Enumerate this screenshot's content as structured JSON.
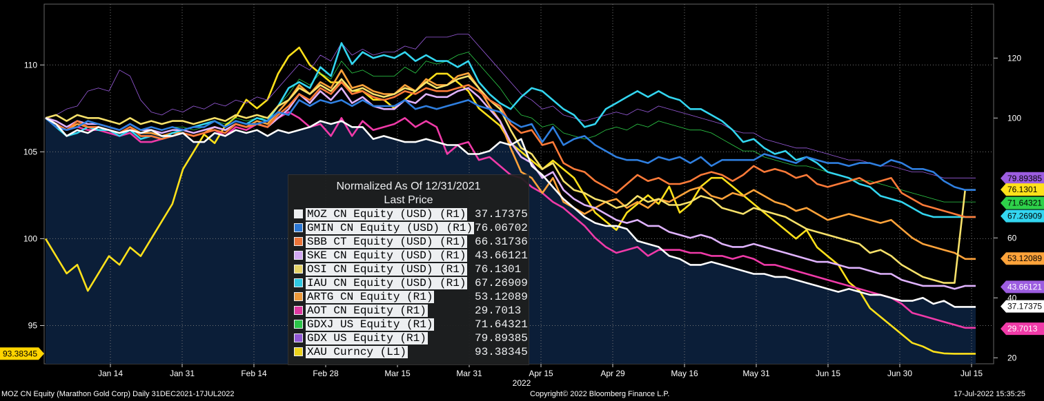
{
  "chart_data": {
    "type": "line",
    "title": "Normalized As Of 12/31/2021",
    "subtitle": "Last Price",
    "x_tick_labels": [
      "Jan 14",
      "Jan 31",
      "Feb 14",
      "Feb 28",
      "Mar 15",
      "Mar 31",
      "Apr 15",
      "Apr 29",
      "May 16",
      "May 31",
      "Jun 15",
      "Jun 30",
      "Jul 15"
    ],
    "x_year_label": "2022",
    "left_axis": {
      "ticks": [
        95,
        100,
        105,
        110
      ],
      "ylim": [
        92.8,
        113.5
      ],
      "marker": "93.38345",
      "marker_color": "#ffd400"
    },
    "right_axis": {
      "ticks": [
        20,
        40,
        60,
        100,
        120
      ],
      "ylim": [
        18,
        138
      ]
    },
    "series": [
      {
        "name": "MOZ CN Equity (USD) (R1)",
        "color": "#ffffff",
        "last": "37.17375",
        "values": [
          100,
          98,
          94,
          96,
          95,
          97,
          96,
          95,
          96,
          95,
          96,
          94,
          94,
          95,
          92,
          92,
          95,
          94,
          96,
          95,
          96,
          94,
          96,
          95,
          96,
          97,
          99,
          98,
          99,
          97,
          97,
          93,
          94,
          93,
          92,
          92,
          93,
          92,
          91,
          91,
          88,
          88,
          89,
          92,
          91,
          93,
          84,
          81,
          77,
          73,
          70,
          67,
          65,
          64,
          64,
          63,
          59,
          58,
          57,
          54,
          53,
          51,
          51,
          52,
          51,
          50,
          49,
          48,
          48,
          47,
          47,
          46,
          45,
          44,
          43,
          42,
          43,
          42,
          41,
          41,
          40,
          39,
          39,
          40,
          38,
          39,
          37,
          37,
          37
        ]
      },
      {
        "name": "GMIN CN Equity (USD) (R1)",
        "color": "#2f7fe0",
        "last": "76.06702",
        "values": [
          100,
          97,
          96,
          97,
          99,
          98,
          97,
          96,
          98,
          96,
          97,
          96,
          97,
          96,
          97,
          97,
          99,
          97,
          99,
          98,
          98,
          99,
          102,
          101,
          106,
          104,
          106,
          105,
          106,
          104,
          106,
          104,
          104,
          104,
          106,
          103,
          104,
          103,
          104,
          105,
          106,
          104,
          103,
          102,
          99,
          97,
          98,
          92,
          97,
          91,
          93,
          94,
          91,
          89,
          87,
          86,
          86,
          85,
          87,
          86,
          87,
          85,
          87,
          84,
          86,
          86,
          86,
          86,
          88,
          87,
          86,
          85,
          87,
          86,
          85,
          85,
          84,
          85,
          85,
          84,
          86,
          85,
          83,
          83,
          82,
          79,
          77,
          76,
          76
        ]
      },
      {
        "name": "SBB CT Equity (USD) (R1)",
        "color": "#ff7b39",
        "last": "66.31736",
        "values": [
          100,
          98,
          96,
          99,
          97,
          97,
          96,
          95,
          97,
          94,
          94,
          93,
          94,
          95,
          94,
          95,
          96,
          95,
          98,
          97,
          98,
          97,
          101,
          104,
          108,
          106,
          110,
          108,
          112,
          108,
          109,
          107,
          106,
          107,
          109,
          108,
          110,
          109,
          109,
          110,
          111,
          109,
          106,
          104,
          98,
          95,
          96,
          91,
          92,
          85,
          83,
          82,
          79,
          77,
          75,
          78,
          81,
          79,
          80,
          78,
          78,
          79,
          81,
          82,
          81,
          79,
          81,
          84,
          82,
          83,
          82,
          80,
          81,
          78,
          77,
          78,
          79,
          80,
          78,
          79,
          80,
          75,
          73,
          71,
          70,
          69,
          68,
          67,
          67
        ]
      },
      {
        "name": "SKE CN Equity (USD) (R1)",
        "color": "#e0b3ff",
        "last": "43.66121",
        "values": [
          100,
          99,
          97,
          99,
          98,
          98,
          97,
          96,
          98,
          96,
          96,
          95,
          96,
          96,
          95,
          96,
          97,
          96,
          98,
          97,
          98,
          97,
          100,
          103,
          108,
          105,
          109,
          106,
          110,
          105,
          107,
          104,
          103,
          103,
          106,
          105,
          108,
          107,
          107,
          109,
          110,
          107,
          103,
          99,
          92,
          87,
          85,
          80,
          82,
          76,
          73,
          71,
          70,
          68,
          66,
          65,
          66,
          64,
          64,
          62,
          61,
          60,
          61,
          60,
          58,
          57,
          57,
          58,
          57,
          56,
          55,
          54,
          53,
          52,
          52,
          51,
          50,
          50,
          49,
          48,
          48,
          46,
          45,
          44,
          44,
          44,
          43,
          44,
          44
        ]
      },
      {
        "name": "OSI CN Equity (USD) (R1)",
        "color": "#f7e16a",
        "last": "76.1301",
        "values": [
          100,
          101,
          99,
          101,
          100,
          100,
          99,
          98,
          100,
          98,
          99,
          98,
          99,
          99,
          98,
          99,
          100,
          99,
          101,
          100,
          101,
          100,
          104,
          106,
          110,
          108,
          111,
          109,
          113,
          109,
          110,
          108,
          107,
          108,
          110,
          109,
          112,
          110,
          111,
          113,
          114,
          110,
          106,
          103,
          96,
          90,
          88,
          83,
          85,
          79,
          76,
          75,
          73,
          72,
          70,
          71,
          74,
          72,
          73,
          71,
          71,
          72,
          74,
          73,
          70,
          69,
          68,
          70,
          69,
          68,
          67,
          65,
          63,
          62,
          61,
          60,
          59,
          58,
          55,
          56,
          54,
          51,
          49,
          47,
          46,
          45,
          45,
          76,
          76
        ]
      },
      {
        "name": "IAU CN Equity (USD) (R1)",
        "color": "#33d6f0",
        "last": "67.26909",
        "values": [
          100,
          97,
          94,
          95,
          97,
          96,
          96,
          94,
          96,
          93,
          94,
          93,
          95,
          96,
          97,
          98,
          99,
          97,
          99,
          98,
          100,
          99,
          104,
          110,
          112,
          110,
          117,
          114,
          125,
          118,
          122,
          120,
          121,
          120,
          122,
          119,
          121,
          119,
          119,
          117,
          119,
          112,
          108,
          105,
          103,
          107,
          110,
          109,
          106,
          103,
          101,
          97,
          98,
          103,
          105,
          107,
          109,
          107,
          109,
          107,
          106,
          103,
          103,
          101,
          99,
          96,
          92,
          93,
          90,
          88,
          89,
          86,
          87,
          85,
          82,
          81,
          80,
          78,
          77,
          74,
          73,
          72,
          70,
          68,
          67,
          67,
          67,
          67,
          67
        ]
      },
      {
        "name": "ARTG CN Equity (R1)",
        "color": "#ffa33a",
        "last": "53.12089",
        "values": [
          100,
          98,
          96,
          98,
          97,
          97,
          96,
          95,
          97,
          95,
          95,
          94,
          95,
          95,
          94,
          95,
          97,
          96,
          98,
          97,
          99,
          98,
          102,
          106,
          111,
          108,
          112,
          110,
          116,
          110,
          111,
          109,
          108,
          108,
          111,
          109,
          113,
          111,
          111,
          114,
          115,
          110,
          104,
          99,
          90,
          82,
          80,
          75,
          80,
          72,
          70,
          68,
          70,
          72,
          73,
          70,
          72,
          70,
          73,
          72,
          74,
          76,
          77,
          74,
          73,
          75,
          74,
          76,
          74,
          72,
          71,
          69,
          70,
          68,
          66,
          67,
          68,
          67,
          66,
          65,
          66,
          63,
          60,
          58,
          57,
          56,
          55,
          53,
          53
        ]
      },
      {
        "name": "AOT CN Equity (R1)",
        "color": "#f03aa8",
        "last": "29.7013",
        "values": [
          100,
          98,
          96,
          97,
          96,
          96,
          95,
          94,
          95,
          92,
          92,
          93,
          94,
          95,
          94,
          95,
          96,
          94,
          97,
          96,
          98,
          97,
          100,
          102,
          100,
          97,
          98,
          94,
          100,
          94,
          99,
          96,
          97,
          98,
          100,
          97,
          99,
          97,
          88,
          91,
          92,
          86,
          87,
          84,
          81,
          80,
          77,
          75,
          72,
          70,
          67,
          64,
          60,
          57,
          55,
          56,
          57,
          54,
          56,
          56,
          56,
          55,
          55,
          54,
          54,
          53,
          54,
          53,
          51,
          51,
          50,
          49,
          48,
          47,
          46,
          45,
          44,
          43,
          42,
          41,
          40,
          38,
          35,
          34,
          33,
          32,
          31,
          30,
          30
        ]
      },
      {
        "name": "GDXJ US Equity (R1)",
        "color": "#2ed14a",
        "last": "71.64321",
        "values": [
          100,
          99,
          97,
          99,
          98,
          98,
          97,
          96,
          98,
          96,
          97,
          96,
          97,
          97,
          96,
          97,
          99,
          98,
          100,
          99,
          100,
          100,
          104,
          108,
          113,
          111,
          115,
          113,
          119,
          115,
          116,
          114,
          114,
          114,
          117,
          115,
          119,
          118,
          119,
          121,
          122,
          118,
          114,
          110,
          105,
          101,
          100,
          97,
          98,
          95,
          94,
          93,
          94,
          96,
          97,
          96,
          98,
          97,
          99,
          98,
          97,
          96,
          96,
          95,
          93,
          91,
          89,
          89,
          87,
          86,
          85,
          84,
          84,
          83,
          82,
          81,
          80,
          79,
          79,
          78,
          77,
          76,
          75,
          74,
          73,
          72,
          72,
          72,
          72
        ]
      },
      {
        "name": "GDX US Equity (R1)",
        "color": "#9c5de0",
        "last": "79.89385",
        "values": [
          100,
          101,
          103,
          104,
          109,
          110,
          109,
          116,
          114,
          106,
          102,
          101,
          103,
          102,
          104,
          103,
          105,
          104,
          106,
          105,
          107,
          106,
          110,
          114,
          118,
          116,
          121,
          119,
          125,
          121,
          123,
          121,
          122,
          122,
          124,
          123,
          127,
          127,
          127,
          128,
          128,
          124,
          120,
          116,
          112,
          108,
          106,
          103,
          104,
          101,
          100,
          99,
          100,
          101,
          102,
          101,
          103,
          102,
          104,
          103,
          102,
          101,
          100,
          99,
          98,
          96,
          95,
          95,
          93,
          92,
          91,
          90,
          90,
          89,
          88,
          87,
          86,
          86,
          85,
          84,
          84,
          83,
          82,
          82,
          81,
          80,
          80,
          80,
          80
        ]
      },
      {
        "name": "XAU Curncy (L1)",
        "color": "#ffe11a",
        "last": "93.38345",
        "values": [
          100,
          99,
          98,
          98.5,
          97,
          98,
          99,
          98.5,
          99.5,
          99,
          100,
          101,
          102,
          104,
          105,
          106,
          105.5,
          106.5,
          107,
          108,
          107.5,
          108,
          109.5,
          110.5,
          111,
          110,
          109.5,
          109,
          109,
          108.5,
          108.5,
          108,
          108,
          107.5,
          108,
          108.5,
          109,
          109.5,
          109.5,
          109,
          108.5,
          107.5,
          107,
          106.5,
          105.5,
          105,
          104.5,
          104,
          104.5,
          104,
          103.5,
          102.5,
          101.5,
          101,
          100.5,
          101.5,
          102,
          102.5,
          102,
          103,
          101.5,
          102,
          103,
          103.5,
          103.5,
          103,
          102.5,
          102,
          101.5,
          101,
          100.5,
          100,
          100.5,
          99.5,
          99,
          98.5,
          97.5,
          97,
          96,
          95.5,
          95,
          94.5,
          94,
          93.8,
          93.5,
          93.4,
          93.38,
          93.38,
          93.38
        ]
      }
    ],
    "side_labels": [
      {
        "text": "79.89385",
        "bg": "#9c5de0",
        "color": "#000000"
      },
      {
        "text": "76.1301",
        "bg": "#ffe11a",
        "color": "#000000"
      },
      {
        "text": "71.64321",
        "bg": "#2ed14a",
        "color": "#000000"
      },
      {
        "text": "67.26909",
        "bg": "#33d6f0",
        "color": "#000000"
      },
      {
        "text": "53.12089",
        "bg": "#ffa33a",
        "color": "#000000"
      },
      {
        "text": "43.66121",
        "bg": "#9c5de0",
        "color": "#ffffff"
      },
      {
        "text": "37.17375",
        "bg": "#ffffff",
        "color": "#000000"
      },
      {
        "text": "29.7013",
        "bg": "#f03aa8",
        "color": "#ffffff"
      }
    ]
  },
  "footer": {
    "left": "MOZ CN Equity (Marathon Gold Corp)  Daily 31DEC2021-17JUL2022",
    "center": "Copyright© 2022 Bloomberg Finance L.P.",
    "right": "17-Jul-2022 15:35:25"
  }
}
